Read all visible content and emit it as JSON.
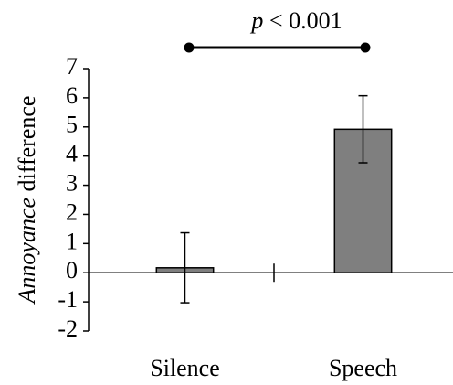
{
  "chart_data": {
    "type": "bar",
    "ylabel": {
      "italic": "Annoyance",
      "text": " difference"
    },
    "annotation": {
      "italic": "p",
      "text": " < 0.001"
    },
    "categories": [
      "Silence",
      "Speech"
    ],
    "values": [
      0.17,
      4.92
    ],
    "errors": [
      1.2,
      1.15
    ],
    "color": "#7f7f7f",
    "ylim": [
      -2,
      7
    ],
    "yticks": [
      -2,
      -1,
      0,
      1,
      2,
      3,
      4,
      5,
      6,
      7
    ],
    "grid": false
  }
}
